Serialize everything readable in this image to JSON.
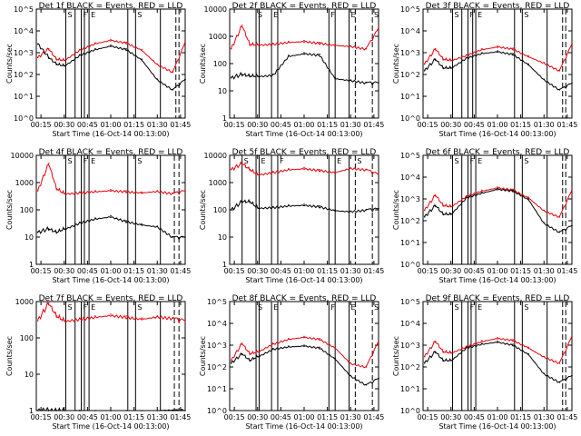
{
  "colors": {
    "events": "#000000",
    "lld": "#e8000b",
    "axes": "#000000",
    "background": "#ffffff"
  },
  "figure_xlabel": "Start Time (16-Oct-14 00:13:00)",
  "figure_ylabel": "Counts/sec",
  "x_ticks": [
    "00:15",
    "00:30",
    "00:45",
    "01:00",
    "01:15",
    "01:30",
    "01:45"
  ],
  "chart_data": [
    {
      "type": "line",
      "title": "Det 1f BLACK = Events, RED = LLD",
      "xlabel": "Start Time (16-Oct-14 00:13:00)",
      "ylabel": "Counts/sec",
      "yscale": "log",
      "ylim": [
        1,
        100000
      ],
      "y_ticks": [
        "10^0",
        "10^1",
        "10^2",
        "10^3",
        "10^4",
        "10^5"
      ],
      "x": [
        "00:13",
        "00:20",
        "00:25",
        "00:30",
        "00:40",
        "00:50",
        "01:00",
        "01:10",
        "01:20",
        "01:30",
        "01:40",
        "01:48"
      ],
      "series": [
        {
          "name": "Events",
          "values": [
            2500,
            600,
            300,
            250,
            800,
            1500,
            2200,
            1500,
            500,
            60,
            20,
            60
          ]
        },
        {
          "name": "LLD",
          "values": [
            600,
            1500,
            500,
            450,
            1400,
            2800,
            4000,
            3000,
            1400,
            300,
            130,
            3000
          ]
        }
      ],
      "vlines_solid": [
        "00:31",
        "00:37",
        "00:41",
        "00:43",
        "00:46",
        "01:11",
        "01:16",
        "01:32"
      ],
      "vlines_dashed": [
        "01:42",
        "01:44"
      ],
      "corner_labels": [
        "S",
        "F",
        "E",
        "S"
      ]
    },
    {
      "type": "line",
      "title": "Det 2f BLACK = Events, RED = LLD",
      "xlabel": "Start Time (16-Oct-14 00:13:00)",
      "ylabel": "Counts/sec",
      "yscale": "log",
      "ylim": [
        1,
        10000
      ],
      "y_ticks": [
        "1",
        "10",
        "100",
        "1000",
        "10000"
      ],
      "x": [
        "00:13",
        "00:20",
        "00:25",
        "00:30",
        "00:40",
        "00:50",
        "01:00",
        "01:10",
        "01:20",
        "01:30",
        "01:40",
        "01:48"
      ],
      "series": [
        {
          "name": "Events",
          "values": [
            30,
            40,
            35,
            35,
            40,
            200,
            250,
            220,
            30,
            25,
            20,
            20
          ]
        },
        {
          "name": "LLD",
          "values": [
            350,
            2500,
            500,
            500,
            550,
            650,
            700,
            600,
            500,
            450,
            350,
            2000
          ]
        }
      ],
      "vlines_solid": [
        "00:29",
        "00:31",
        "00:39",
        "00:43",
        "01:16",
        "01:20",
        "01:29"
      ],
      "vlines_dashed": [
        "01:33",
        "01:44"
      ],
      "corner_labels": [
        "S",
        "E",
        "F",
        "E",
        "S"
      ]
    },
    {
      "type": "line",
      "title": "Det 3f BLACK = Events, RED = LLD",
      "xlabel": "Start Time (16-Oct-14 00:13:00)",
      "ylabel": "Counts/sec",
      "yscale": "log",
      "ylim": [
        1,
        100000
      ],
      "y_ticks": [
        "10^0",
        "10^1",
        "10^2",
        "10^3",
        "10^4",
        "10^5"
      ],
      "x": [
        "00:13",
        "00:20",
        "00:25",
        "00:30",
        "00:40",
        "00:50",
        "01:00",
        "01:10",
        "01:20",
        "01:30",
        "01:40",
        "01:48"
      ],
      "series": [
        {
          "name": "Events",
          "values": [
            150,
            500,
            200,
            200,
            600,
            1000,
            1200,
            900,
            300,
            60,
            20,
            40
          ]
        },
        {
          "name": "LLD",
          "values": [
            300,
            1500,
            500,
            450,
            800,
            1500,
            2000,
            1600,
            700,
            350,
            150,
            2500
          ]
        }
      ],
      "vlines_solid": [
        "00:31",
        "00:37",
        "00:41",
        "00:44",
        "00:46",
        "01:11",
        "01:16",
        "01:32"
      ],
      "vlines_dashed": [
        "01:42",
        "01:44"
      ],
      "corner_labels": [
        "S",
        "F",
        "E",
        "S"
      ]
    },
    {
      "type": "line",
      "title": "Det 4f BLACK = Events, RED = LLD",
      "xlabel": "Start Time (16-Oct-14 00:13:00)",
      "ylabel": "Counts/sec",
      "yscale": "log",
      "ylim": [
        1,
        10000
      ],
      "y_ticks": [
        "1",
        "10",
        "100",
        "1000",
        "10000"
      ],
      "x": [
        "00:13",
        "00:20",
        "00:25",
        "00:30",
        "00:40",
        "00:50",
        "01:00",
        "01:10",
        "01:20",
        "01:30",
        "01:40",
        "01:48"
      ],
      "series": [
        {
          "name": "Events",
          "values": [
            15,
            20,
            15,
            20,
            35,
            50,
            60,
            40,
            30,
            25,
            10,
            10
          ]
        },
        {
          "name": "LLD",
          "values": [
            500,
            5000,
            600,
            400,
            450,
            500,
            550,
            500,
            450,
            500,
            400,
            500
          ]
        }
      ],
      "vlines_solid": [
        "00:31",
        "00:37",
        "00:41",
        "00:43",
        "00:46",
        "01:11",
        "01:16",
        "01:32"
      ],
      "vlines_dashed": [
        "01:41",
        "01:44"
      ],
      "corner_labels": [
        "S",
        "F",
        "E",
        "S"
      ]
    },
    {
      "type": "line",
      "title": "Det 5f BLACK = Events, RED = LLD",
      "xlabel": "Start Time (16-Oct-14 00:13:00)",
      "ylabel": "Counts/sec",
      "yscale": "log",
      "ylim": [
        1,
        10000
      ],
      "y_ticks": [
        "1",
        "10",
        "100",
        "1000",
        "10000"
      ],
      "x": [
        "00:13",
        "00:20",
        "00:25",
        "00:30",
        "00:40",
        "00:50",
        "01:00",
        "01:10",
        "01:20",
        "01:30",
        "01:40",
        "01:48"
      ],
      "series": [
        {
          "name": "Events",
          "values": [
            100,
            200,
            200,
            120,
            130,
            150,
            160,
            140,
            100,
            90,
            100,
            110
          ]
        },
        {
          "name": "LLD",
          "values": [
            3000,
            5000,
            3000,
            2000,
            2500,
            3200,
            3500,
            3000,
            2500,
            3500,
            3000,
            2000
          ]
        }
      ],
      "vlines_solid": [
        "00:20",
        "00:29",
        "00:31",
        "00:39",
        "00:43",
        "01:16",
        "01:20",
        "01:29"
      ],
      "vlines_dashed": [
        "01:33",
        "01:44"
      ],
      "corner_labels": [
        "S",
        "E",
        "F",
        "E",
        "S"
      ]
    },
    {
      "type": "line",
      "title": "Det 6f BLACK = Events, RED = LLD",
      "xlabel": "Start Time (16-Oct-14 00:13:00)",
      "ylabel": "Counts/sec",
      "yscale": "log",
      "ylim": [
        1,
        100000
      ],
      "y_ticks": [
        "10^0",
        "10^1",
        "10^2",
        "10^3",
        "10^4",
        "10^5"
      ],
      "x": [
        "00:13",
        "00:20",
        "00:25",
        "00:30",
        "00:40",
        "00:50",
        "01:00",
        "01:10",
        "01:20",
        "01:30",
        "01:40",
        "01:48"
      ],
      "series": [
        {
          "name": "Events",
          "values": [
            150,
            500,
            200,
            200,
            1200,
            2000,
            3000,
            2500,
            1000,
            80,
            30,
            60
          ]
        },
        {
          "name": "LLD",
          "values": [
            300,
            1500,
            500,
            450,
            1400,
            2500,
            3500,
            2800,
            1200,
            300,
            150,
            2500
          ]
        }
      ],
      "vlines_solid": [
        "00:31",
        "00:37",
        "00:41",
        "00:43",
        "00:46",
        "01:11",
        "01:16",
        "01:32"
      ],
      "vlines_dashed": [
        "01:42",
        "01:44"
      ],
      "corner_labels": [
        "S",
        "F",
        "E",
        "S"
      ]
    },
    {
      "type": "line",
      "title": "Det 7f BLACK = Events, RED = LLD",
      "xlabel": "Start Time (16-Oct-14 00:13:00)",
      "ylabel": "Counts/sec",
      "yscale": "log",
      "ylim": [
        1,
        1000
      ],
      "y_ticks": [
        "1",
        "10",
        "100",
        "1000"
      ],
      "x": [
        "00:13",
        "00:20",
        "00:25",
        "00:30",
        "00:40",
        "00:50",
        "01:00",
        "01:10",
        "01:20",
        "01:30",
        "01:40",
        "01:48"
      ],
      "series": [
        {
          "name": "Events",
          "values": [
            1,
            1,
            1,
            1,
            1,
            1,
            1,
            1,
            1,
            1,
            1,
            1
          ]
        },
        {
          "name": "LLD",
          "values": [
            300,
            900,
            400,
            300,
            350,
            400,
            450,
            400,
            350,
            400,
            350,
            300
          ]
        }
      ],
      "vlines_solid": [
        "00:31",
        "00:37",
        "00:41",
        "00:43",
        "00:46",
        "01:11",
        "01:16",
        "01:32"
      ],
      "vlines_dashed": [
        "01:41",
        "01:44"
      ],
      "corner_labels": [
        "S",
        "F",
        "E",
        "S"
      ]
    },
    {
      "type": "line",
      "title": "Det 8f BLACK = Events, RED = LLD",
      "xlabel": "Start Time (16-Oct-14 00:13:00)",
      "ylabel": "Counts/sec",
      "yscale": "log",
      "ylim": [
        1,
        100000
      ],
      "y_ticks": [
        "10^0",
        "10^1",
        "10^2",
        "10^3",
        "10^4",
        "10^5"
      ],
      "x": [
        "00:13",
        "00:20",
        "00:25",
        "00:30",
        "00:40",
        "00:50",
        "01:00",
        "01:10",
        "01:20",
        "01:30",
        "01:40",
        "01:48"
      ],
      "series": [
        {
          "name": "Events",
          "values": [
            150,
            400,
            200,
            300,
            700,
            900,
            1000,
            800,
            250,
            40,
            15,
            30
          ]
        },
        {
          "name": "LLD",
          "values": [
            200,
            1200,
            400,
            500,
            1200,
            2000,
            2500,
            2000,
            800,
            150,
            100,
            1500
          ]
        }
      ],
      "vlines_solid": [
        "00:29",
        "00:31",
        "00:39",
        "00:43",
        "01:16",
        "01:20",
        "01:29"
      ],
      "vlines_dashed": [
        "01:33",
        "01:44"
      ],
      "corner_labels": [
        "S",
        "E",
        "F",
        "E",
        "S"
      ]
    },
    {
      "type": "line",
      "title": "Det 9f BLACK = Events, RED = LLD",
      "xlabel": "Start Time (16-Oct-14 00:13:00)",
      "ylabel": "Counts/sec",
      "yscale": "log",
      "ylim": [
        1,
        100000
      ],
      "y_ticks": [
        "10^0",
        "10^1",
        "10^2",
        "10^3",
        "10^4",
        "10^5"
      ],
      "x": [
        "00:13",
        "00:20",
        "00:25",
        "00:30",
        "00:40",
        "00:50",
        "01:00",
        "01:10",
        "01:20",
        "01:30",
        "01:40",
        "01:48"
      ],
      "series": [
        {
          "name": "Events",
          "values": [
            150,
            500,
            200,
            200,
            800,
            1200,
            1500,
            1100,
            400,
            50,
            20,
            40
          ]
        },
        {
          "name": "LLD",
          "values": [
            300,
            1500,
            500,
            450,
            900,
            1600,
            2200,
            1800,
            800,
            300,
            150,
            2500
          ]
        }
      ],
      "vlines_solid": [
        "00:31",
        "00:37",
        "00:41",
        "00:43",
        "00:46",
        "01:11",
        "01:16",
        "01:32"
      ],
      "vlines_dashed": [
        "01:42",
        "01:44"
      ],
      "corner_labels": [
        "S",
        "F",
        "E",
        "S"
      ]
    }
  ]
}
